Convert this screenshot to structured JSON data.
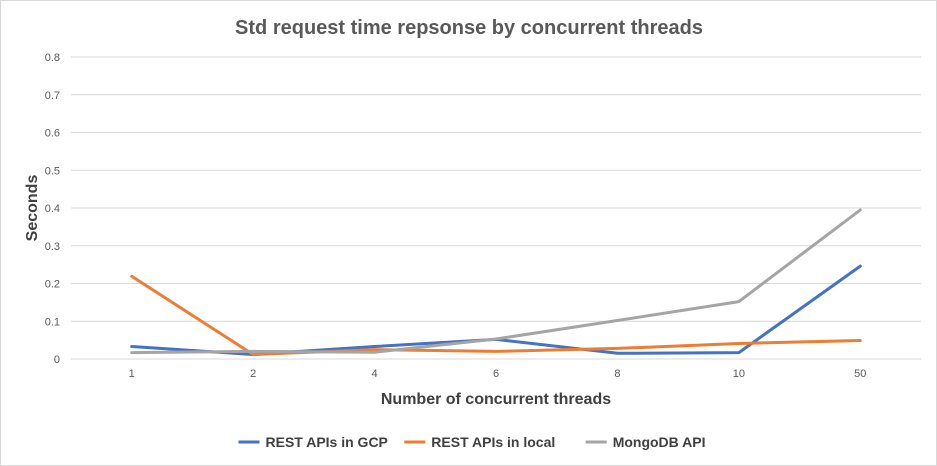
{
  "chart_data": {
    "type": "line",
    "title": "Std request time repsonse by concurrent threads",
    "xlabel": "Number of concurrent  threads",
    "ylabel": "Seconds",
    "categories": [
      "1",
      "2",
      "4",
      "6",
      "8",
      "10",
      "50"
    ],
    "ylim": [
      0,
      0.8
    ],
    "yticks": [
      "0",
      "0.1",
      "0.2",
      "0.3",
      "0.4",
      "0.5",
      "0.6",
      "0.7",
      "0.8"
    ],
    "grid": true,
    "legend_position": "bottom",
    "series": [
      {
        "name": "REST APIs in GCP",
        "color": "#4472c4",
        "values": [
          0.033,
          0.012,
          0.033,
          0.052,
          0.015,
          0.017,
          0.246
        ]
      },
      {
        "name": "REST APIs in local",
        "color": "#ed7d31",
        "values": [
          0.219,
          0.012,
          0.025,
          0.02,
          0.028,
          0.041,
          0.049
        ]
      },
      {
        "name": "MongoDB API",
        "color": "#a5a5a5",
        "values": [
          0.017,
          0.02,
          0.018,
          0.053,
          0.102,
          0.152,
          0.395
        ]
      }
    ]
  }
}
